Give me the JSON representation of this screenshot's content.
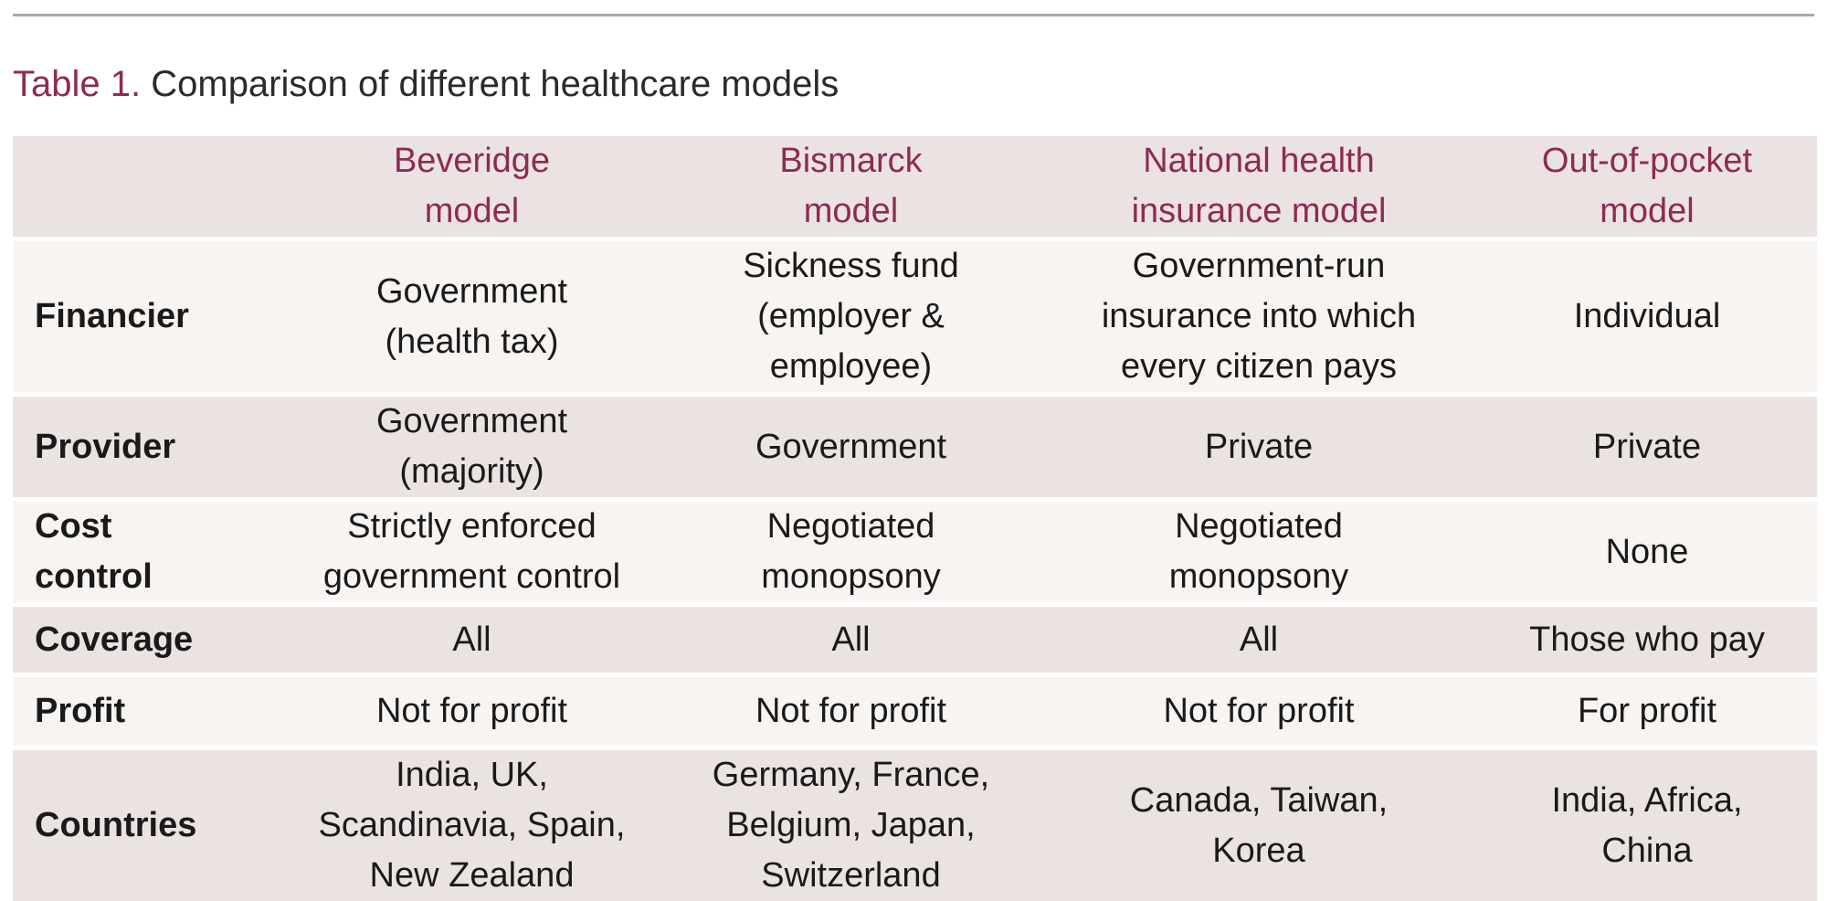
{
  "caption": {
    "label": "Table 1.",
    "title": "Comparison of different healthcare models"
  },
  "colors": {
    "accent": "#8e2a55",
    "header_bg": "#ebe3e2",
    "row_light": "#f7f4f2",
    "row_dark": "#ebe3e2",
    "rule": "#a9a9a9"
  },
  "table": {
    "columns": [
      "",
      "Beveridge\nmodel",
      "Bismarck\nmodel",
      "National health\ninsurance model",
      "Out-of-pocket\nmodel"
    ],
    "rows": [
      {
        "label": "Financier",
        "cells": [
          "Government\n(health tax)",
          "Sickness fund\n(employer &\nemployee)",
          "Government-run\ninsurance into which\nevery citizen pays",
          "Individual"
        ]
      },
      {
        "label": "Provider",
        "cells": [
          "Government\n(majority)",
          "Government",
          "Private",
          "Private"
        ]
      },
      {
        "label": "Cost\ncontrol",
        "cells": [
          "Strictly enforced\ngovernment control",
          "Negotiated\nmonopsony",
          "Negotiated\nmonopsony",
          "None"
        ]
      },
      {
        "label": "Coverage",
        "cells": [
          "All",
          "All",
          "All",
          "Those who pay"
        ]
      },
      {
        "label": "Profit",
        "cells": [
          "Not for profit",
          "Not for profit",
          "Not for profit",
          "For profit"
        ]
      },
      {
        "label": "Countries",
        "cells": [
          "India, UK,\nScandinavia, Spain,\nNew Zealand",
          "Germany, France,\nBelgium, Japan,\nSwitzerland",
          "Canada, Taiwan,\nKorea",
          "India, Africa,\nChina"
        ]
      }
    ]
  }
}
